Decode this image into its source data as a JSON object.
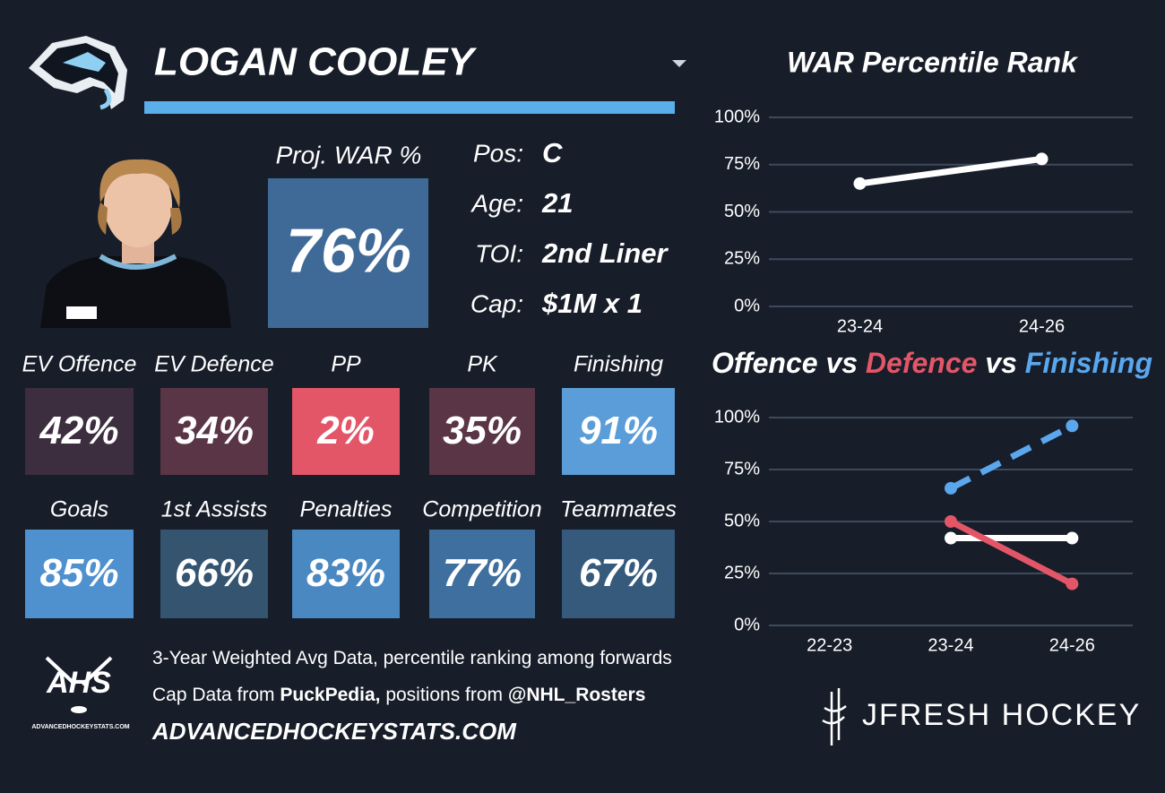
{
  "player": {
    "name": "LOGAN COOLEY",
    "proj_war_label": "Proj. WAR %",
    "proj_war": "76%",
    "proj_war_color": "#3f6a97",
    "info": [
      {
        "label": "Pos:",
        "value": "C"
      },
      {
        "label": "Age:",
        "value": 21
      },
      {
        "label": "TOI:",
        "value": "2nd Liner"
      },
      {
        "label": "Cap:",
        "value": "$1M x 1"
      }
    ]
  },
  "tiles": [
    [
      {
        "label": "EV Offence",
        "value": "42%",
        "color": "#3c2e3f"
      },
      {
        "label": "EV Defence",
        "value": "34%",
        "color": "#5a3546"
      },
      {
        "label": "PP",
        "value": "2%",
        "color": "#e35668"
      },
      {
        "label": "PK",
        "value": "35%",
        "color": "#5a3546"
      },
      {
        "label": "Finishing",
        "value": "91%",
        "color": "#5b9dd8"
      }
    ],
    [
      {
        "label": "Goals",
        "value": "85%",
        "color": "#4f90ce"
      },
      {
        "label": "1st Assists",
        "value": "66%",
        "color": "#34546f"
      },
      {
        "label": "Penalties",
        "value": "83%",
        "color": "#4a88c2"
      },
      {
        "label": "Competition",
        "value": "77%",
        "color": "#3f6f9e"
      },
      {
        "label": "Teammates",
        "value": "67%",
        "color": "#355a7c"
      }
    ]
  ],
  "chart_data": [
    {
      "type": "line",
      "title": "WAR Percentile Rank",
      "categories": [
        "23-24",
        "24-26"
      ],
      "values": [
        65,
        78
      ],
      "color": "#ffffff",
      "ylim": [
        0,
        100
      ],
      "yticks": [
        {
          "value": 0,
          "label": "0%"
        },
        {
          "value": 25,
          "label": "25%"
        },
        {
          "value": 50,
          "label": "50%"
        },
        {
          "value": 75,
          "label": "75%"
        },
        {
          "value": 100,
          "label": "100%"
        }
      ],
      "grid": true
    },
    {
      "type": "line",
      "title_joiner": "vs",
      "categories": [
        "22-23",
        "23-24",
        "24-26"
      ],
      "series": [
        {
          "name": "Offence",
          "color": "#ffffff",
          "values": [
            null,
            42,
            42
          ]
        },
        {
          "name": "Defence",
          "color": "#e35668",
          "values": [
            null,
            50,
            20
          ]
        },
        {
          "name": "Finishing",
          "color": "#5aa7ee",
          "dashed": true,
          "values": [
            null,
            66,
            96
          ]
        }
      ],
      "ylim": [
        0,
        100
      ],
      "yticks": [
        {
          "value": 0,
          "label": "0%"
        },
        {
          "value": 25,
          "label": "25%"
        },
        {
          "value": 50,
          "label": "50%"
        },
        {
          "value": 75,
          "label": "75%"
        },
        {
          "value": 100,
          "label": "100%"
        }
      ],
      "grid": true
    }
  ],
  "footer": {
    "lines": [
      [
        {
          "text": "3-Year Weighted Avg Data, percentile ranking among forwards"
        }
      ],
      [
        {
          "text": "Cap Data from"
        },
        {
          "text": "PuckPedia,",
          "bold": true
        },
        {
          "text": "positions from"
        },
        {
          "text": "@NHL_Rosters",
          "bold": true
        }
      ]
    ],
    "website": "ADVANCEDHOCKEYSTATS.COM",
    "ahs_logo": {
      "big": "AHS",
      "small": "ADVANCEDHOCKEYSTATS.COM"
    },
    "brand": "JFRESH HOCKEY"
  }
}
